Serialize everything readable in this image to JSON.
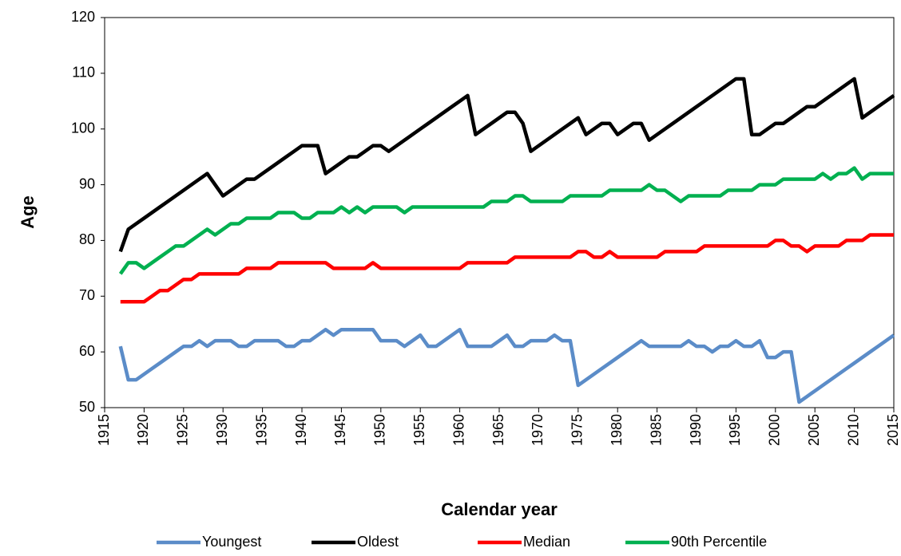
{
  "chart_data": {
    "type": "line",
    "x_label": "Calendar year",
    "y_label": "Age",
    "x": [
      1917,
      1918,
      1919,
      1920,
      1921,
      1922,
      1923,
      1924,
      1925,
      1926,
      1927,
      1928,
      1929,
      1930,
      1931,
      1932,
      1933,
      1934,
      1935,
      1936,
      1937,
      1938,
      1939,
      1940,
      1941,
      1942,
      1943,
      1944,
      1945,
      1946,
      1947,
      1948,
      1949,
      1950,
      1951,
      1952,
      1953,
      1954,
      1955,
      1956,
      1957,
      1958,
      1959,
      1960,
      1961,
      1962,
      1963,
      1964,
      1965,
      1966,
      1967,
      1968,
      1969,
      1970,
      1971,
      1972,
      1973,
      1974,
      1975,
      1976,
      1977,
      1978,
      1979,
      1980,
      1981,
      1982,
      1983,
      1984,
      1985,
      1986,
      1987,
      1988,
      1989,
      1990,
      1991,
      1992,
      1993,
      1994,
      1995,
      1996,
      1997,
      1998,
      1999,
      2000,
      2001,
      2002,
      2003,
      2004,
      2005,
      2006,
      2007,
      2008,
      2009,
      2010,
      2011,
      2012,
      2013,
      2014,
      2015
    ],
    "series": [
      {
        "name": "Youngest",
        "color": "#5b8cc8",
        "values": [
          61,
          55,
          55,
          56,
          57,
          58,
          59,
          60,
          61,
          61,
          62,
          61,
          62,
          62,
          62,
          61,
          61,
          62,
          62,
          62,
          62,
          61,
          61,
          62,
          62,
          63,
          64,
          63,
          64,
          64,
          64,
          64,
          64,
          62,
          62,
          62,
          61,
          62,
          63,
          61,
          61,
          62,
          63,
          64,
          61,
          61,
          61,
          61,
          62,
          63,
          61,
          61,
          62,
          62,
          62,
          63,
          62,
          62,
          54,
          55,
          56,
          57,
          58,
          59,
          60,
          61,
          62,
          61,
          61,
          61,
          61,
          61,
          62,
          61,
          61,
          60,
          61,
          61,
          62,
          61,
          61,
          62,
          59,
          59,
          60,
          60,
          51,
          52,
          53,
          54,
          55,
          56,
          57,
          58,
          59,
          60,
          61,
          62,
          63
        ]
      },
      {
        "name": "Oldest",
        "color": "#000000",
        "values": [
          78,
          82,
          83,
          84,
          85,
          86,
          87,
          88,
          89,
          90,
          91,
          92,
          90,
          88,
          89,
          90,
          91,
          91,
          92,
          93,
          94,
          95,
          96,
          97,
          97,
          97,
          92,
          93,
          94,
          95,
          95,
          96,
          97,
          97,
          96,
          97,
          98,
          99,
          100,
          101,
          102,
          103,
          104,
          105,
          106,
          99,
          100,
          101,
          102,
          103,
          103,
          101,
          96,
          97,
          98,
          99,
          100,
          101,
          102,
          99,
          100,
          101,
          101,
          99,
          100,
          101,
          101,
          98,
          99,
          100,
          101,
          102,
          103,
          104,
          105,
          106,
          107,
          108,
          109,
          109,
          99,
          99,
          100,
          101,
          101,
          102,
          103,
          104,
          104,
          105,
          106,
          107,
          108,
          109,
          102,
          103,
          104,
          105,
          106
        ]
      },
      {
        "name": "Median",
        "color": "#ff0000",
        "values": [
          69,
          69,
          69,
          69,
          70,
          71,
          71,
          72,
          73,
          73,
          74,
          74,
          74,
          74,
          74,
          74,
          75,
          75,
          75,
          75,
          76,
          76,
          76,
          76,
          76,
          76,
          76,
          75,
          75,
          75,
          75,
          75,
          76,
          75,
          75,
          75,
          75,
          75,
          75,
          75,
          75,
          75,
          75,
          75,
          76,
          76,
          76,
          76,
          76,
          76,
          77,
          77,
          77,
          77,
          77,
          77,
          77,
          77,
          78,
          78,
          77,
          77,
          78,
          77,
          77,
          77,
          77,
          77,
          77,
          78,
          78,
          78,
          78,
          78,
          79,
          79,
          79,
          79,
          79,
          79,
          79,
          79,
          79,
          80,
          80,
          79,
          79,
          78,
          79,
          79,
          79,
          79,
          80,
          80,
          80,
          81,
          81,
          81,
          81
        ]
      },
      {
        "name": "90th Percentile",
        "color": "#00b050",
        "values": [
          74,
          76,
          76,
          75,
          76,
          77,
          78,
          79,
          79,
          80,
          81,
          82,
          81,
          82,
          83,
          83,
          84,
          84,
          84,
          84,
          85,
          85,
          85,
          84,
          84,
          85,
          85,
          85,
          86,
          85,
          86,
          85,
          86,
          86,
          86,
          86,
          85,
          86,
          86,
          86,
          86,
          86,
          86,
          86,
          86,
          86,
          86,
          87,
          87,
          87,
          88,
          88,
          87,
          87,
          87,
          87,
          87,
          88,
          88,
          88,
          88,
          88,
          89,
          89,
          89,
          89,
          89,
          90,
          89,
          89,
          88,
          87,
          88,
          88,
          88,
          88,
          88,
          89,
          89,
          89,
          89,
          90,
          90,
          90,
          91,
          91,
          91,
          91,
          91,
          92,
          91,
          92,
          92,
          93,
          91,
          92,
          92,
          92,
          92
        ]
      }
    ],
    "xlim": [
      1915,
      2015
    ],
    "xticks": [
      1915,
      1920,
      1925,
      1930,
      1935,
      1940,
      1945,
      1950,
      1955,
      1960,
      1965,
      1970,
      1975,
      1980,
      1985,
      1990,
      1995,
      2000,
      2005,
      2010,
      2015
    ],
    "ylim": [
      50,
      120
    ],
    "yticks": [
      50,
      60,
      70,
      80,
      90,
      100,
      110,
      120
    ],
    "grid": false,
    "legend": "bottom"
  }
}
